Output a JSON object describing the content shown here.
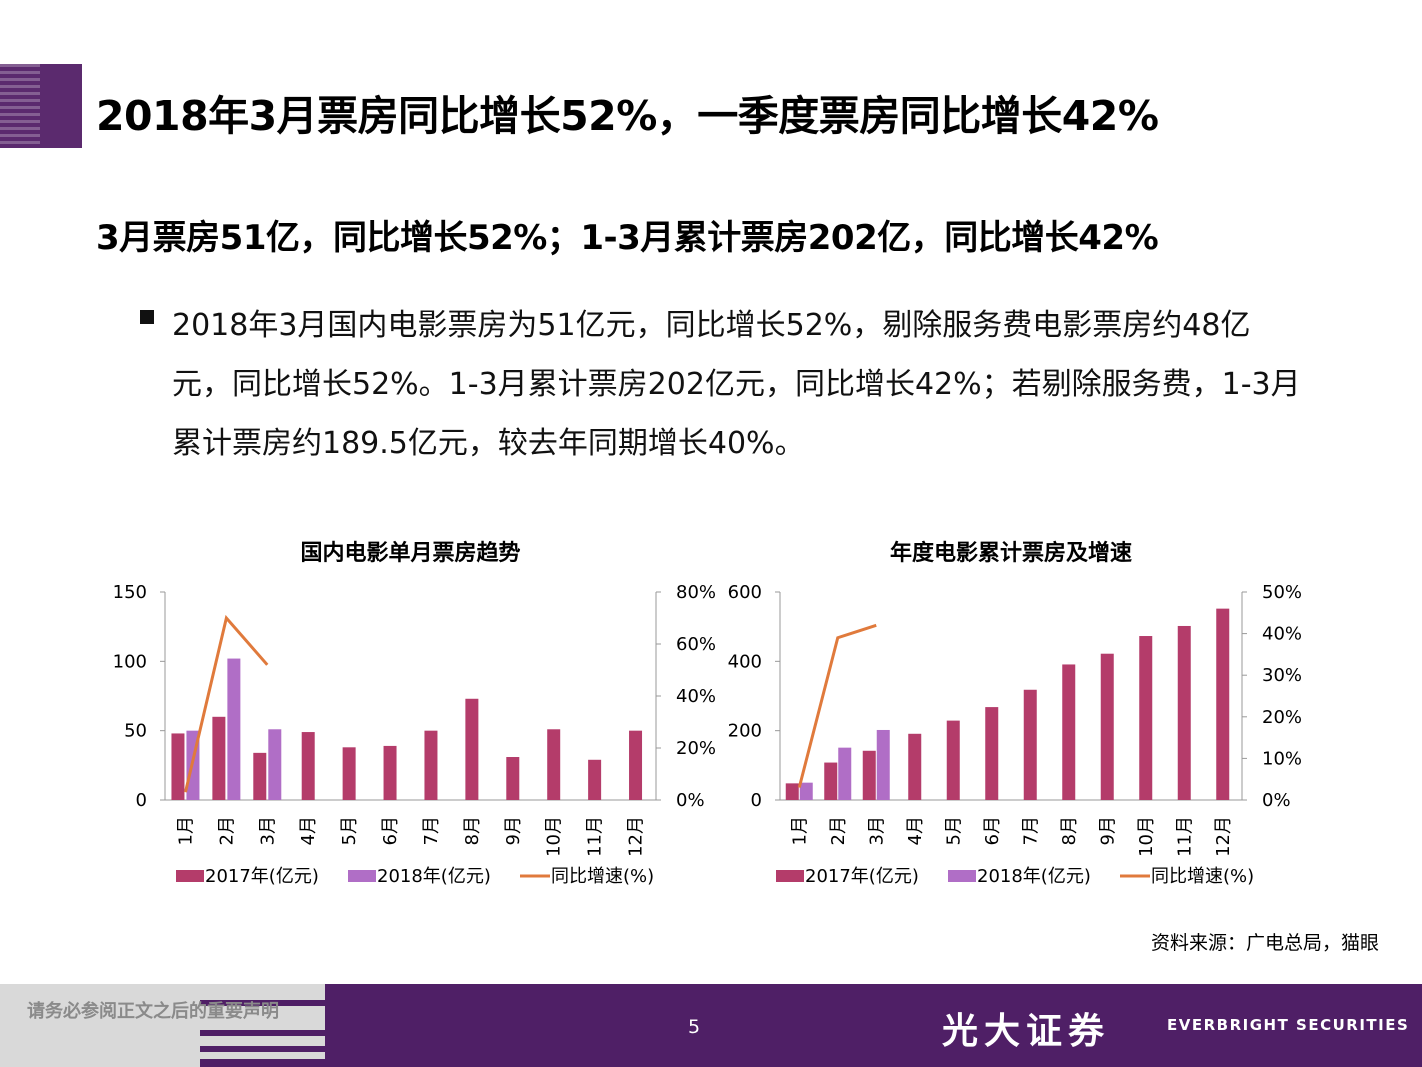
{
  "title": "2018年3月票房同比增长52%，一季度票房同比增长42%",
  "subtitle": "3月票房51亿，同比增长52%；1-3月累计票房202亿，同比增长42%",
  "paragraph": "2018年3月国内电影票房为51亿元，同比增长52%，剔除服务费电影票房约48亿元，同比增长52%。1-3月累计票房202亿元，同比增长42%；若剔除服务费，1-3月累计票房约189.5亿元，较去年同期增长40%。",
  "source": "资料来源：广电总局，猫眼",
  "footer": {
    "note": "请务必参阅正文之后的重要声明",
    "page": "5",
    "brand_cn": "光大证券",
    "brand_en": "EVERBRIGHT SECURITIES"
  },
  "colors": {
    "bar2017": "#b43c6a",
    "bar2018": "#b06ec6",
    "line": "#e07a3c",
    "footer": "#4f1f66",
    "accent": "#5b2a6e"
  },
  "chart_data": [
    {
      "type": "bar",
      "title": "国内电影单月票房趋势",
      "categories": [
        "1月",
        "2月",
        "3月",
        "4月",
        "5月",
        "6月",
        "7月",
        "8月",
        "9月",
        "10月",
        "11月",
        "12月"
      ],
      "series": [
        {
          "name": "2017年(亿元)",
          "type": "bar",
          "axis": "left",
          "values": [
            48,
            60,
            34,
            49,
            38,
            39,
            50,
            73,
            31,
            51,
            29,
            50
          ]
        },
        {
          "name": "2018年(亿元)",
          "type": "bar",
          "axis": "left",
          "values": [
            50,
            102,
            51,
            null,
            null,
            null,
            null,
            null,
            null,
            null,
            null,
            null
          ]
        },
        {
          "name": "同比增速(%)",
          "type": "line",
          "axis": "right",
          "values": [
            3,
            70,
            52,
            null,
            null,
            null,
            null,
            null,
            null,
            null,
            null,
            null
          ]
        }
      ],
      "yTicks": [
        "0",
        "50",
        "100",
        "150"
      ],
      "y2Ticks": [
        "0%",
        "20%",
        "40%",
        "60%",
        "80%"
      ],
      "ylim": [
        0,
        150
      ],
      "y2lim": [
        0,
        80
      ],
      "legend": "bottom"
    },
    {
      "type": "bar",
      "title": "年度电影累计票房及增速",
      "categories": [
        "1月",
        "2月",
        "3月",
        "4月",
        "5月",
        "6月",
        "7月",
        "8月",
        "9月",
        "10月",
        "11月",
        "12月"
      ],
      "series": [
        {
          "name": "2017年(亿元)",
          "type": "bar",
          "axis": "left",
          "values": [
            48,
            108,
            142,
            191,
            229,
            268,
            318,
            391,
            422,
            473,
            502,
            552
          ]
        },
        {
          "name": "2018年(亿元)",
          "type": "bar",
          "axis": "left",
          "values": [
            50,
            151,
            202,
            null,
            null,
            null,
            null,
            null,
            null,
            null,
            null,
            null
          ]
        },
        {
          "name": "同比增速(%)",
          "type": "line",
          "axis": "right",
          "values": [
            3,
            39,
            42,
            null,
            null,
            null,
            null,
            null,
            null,
            null,
            null,
            null
          ]
        }
      ],
      "yTicks": [
        "0",
        "200",
        "400",
        "600"
      ],
      "y2Ticks": [
        "0%",
        "10%",
        "20%",
        "30%",
        "40%",
        "50%"
      ],
      "ylim": [
        0,
        600
      ],
      "y2lim": [
        0,
        50
      ],
      "legend": "bottom"
    }
  ]
}
